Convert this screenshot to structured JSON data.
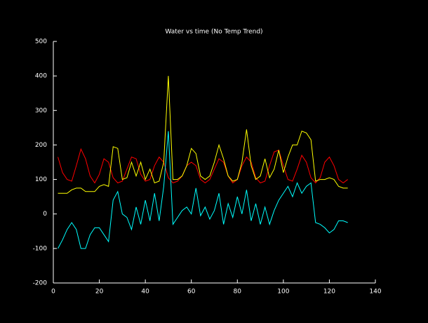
{
  "chart_data": {
    "type": "line",
    "title": "Water vs time (No Temp Trend)",
    "x": [
      2,
      4,
      6,
      8,
      10,
      12,
      14,
      16,
      18,
      20,
      22,
      24,
      26,
      28,
      30,
      32,
      34,
      36,
      38,
      40,
      42,
      44,
      46,
      48,
      50,
      52,
      54,
      56,
      58,
      60,
      62,
      64,
      66,
      68,
      70,
      72,
      74,
      76,
      78,
      80,
      82,
      84,
      86,
      88,
      90,
      92,
      94,
      96,
      98,
      100,
      102,
      104,
      106,
      108,
      110,
      112,
      114,
      116,
      118,
      120,
      122,
      124,
      126,
      128
    ],
    "series": [
      {
        "color": "#ff0000",
        "values": [
          165,
          120,
          100,
          95,
          140,
          188,
          160,
          110,
          90,
          115,
          160,
          150,
          105,
          90,
          95,
          130,
          165,
          160,
          115,
          95,
          100,
          140,
          165,
          150,
          105,
          90,
          95,
          110,
          140,
          150,
          140,
          100,
          90,
          100,
          130,
          160,
          150,
          110,
          90,
          100,
          140,
          165,
          150,
          105,
          90,
          95,
          140,
          180,
          185,
          140,
          100,
          95,
          130,
          170,
          150,
          105,
          90,
          105,
          150,
          165,
          140,
          100,
          90,
          100
        ]
      },
      {
        "color": "#ffff00",
        "values": [
          60,
          60,
          60,
          70,
          75,
          75,
          65,
          65,
          65,
          80,
          85,
          80,
          195,
          190,
          100,
          105,
          150,
          110,
          150,
          100,
          130,
          90,
          95,
          150,
          400,
          100,
          100,
          110,
          140,
          190,
          175,
          110,
          100,
          110,
          150,
          200,
          160,
          110,
          95,
          100,
          150,
          245,
          140,
          100,
          110,
          160,
          105,
          130,
          185,
          120,
          165,
          200,
          200,
          240,
          235,
          215,
          95,
          100,
          100,
          105,
          100,
          80,
          75,
          75
        ]
      },
      {
        "color": "#00ffff",
        "values": [
          -100,
          -75,
          -45,
          -25,
          -45,
          -100,
          -100,
          -60,
          -40,
          -40,
          -60,
          -80,
          40,
          65,
          0,
          -10,
          -45,
          20,
          -30,
          40,
          -20,
          60,
          -20,
          80,
          240,
          -30,
          -10,
          10,
          20,
          0,
          75,
          -5,
          20,
          -15,
          10,
          60,
          -30,
          30,
          -10,
          50,
          0,
          70,
          -20,
          30,
          -30,
          20,
          -30,
          10,
          40,
          60,
          80,
          50,
          90,
          60,
          80,
          90,
          -25,
          -30,
          -40,
          -55,
          -45,
          -20,
          -20,
          -25
        ]
      }
    ],
    "xlim": [
      0,
      140
    ],
    "xticks": [
      0,
      20,
      40,
      60,
      80,
      100,
      120,
      140
    ],
    "ylim": [
      -200,
      500
    ],
    "yticks": [
      -200,
      -100,
      0,
      100,
      200,
      300,
      400,
      500
    ]
  }
}
